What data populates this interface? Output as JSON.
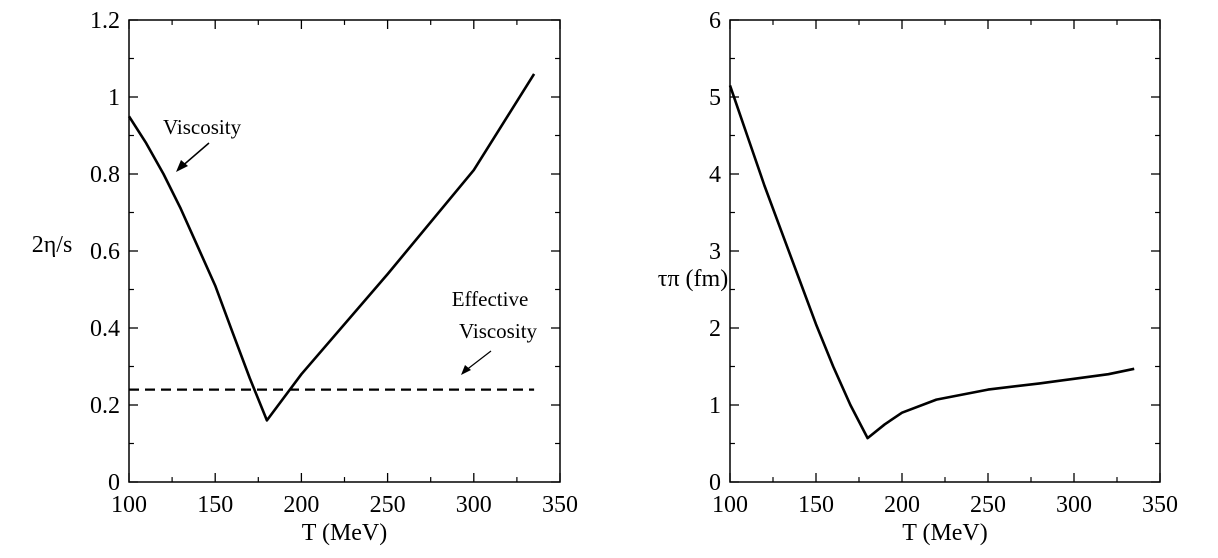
{
  "chart_data": [
    {
      "type": "line",
      "xlabel": "T (MeV)",
      "ylabel": "2η/s",
      "xlim": [
        100,
        350
      ],
      "ylim": [
        0,
        1.2
      ],
      "xticks": [
        100,
        150,
        200,
        250,
        300,
        350
      ],
      "yticks": [
        0,
        0.2,
        0.4,
        0.6,
        0.8,
        1,
        1.2
      ],
      "ytick_labels": [
        "0",
        "0.2",
        "0.4",
        "0.6",
        "0.8",
        "1",
        "1.2"
      ],
      "grid": false,
      "series": [
        {
          "name": "Viscosity",
          "style": "solid",
          "x": [
            100,
            110,
            120,
            130,
            140,
            150,
            160,
            170,
            180,
            200,
            250,
            300,
            335
          ],
          "y": [
            0.95,
            0.88,
            0.8,
            0.71,
            0.61,
            0.51,
            0.39,
            0.27,
            0.16,
            0.28,
            0.54,
            0.81,
            1.06
          ]
        },
        {
          "name": "Effective Viscosity",
          "style": "dashed",
          "x": [
            100,
            335
          ],
          "y": [
            0.24,
            0.24
          ]
        }
      ],
      "annotations": [
        {
          "text_lines": [
            "Viscosity"
          ],
          "anchor": "upper-left"
        },
        {
          "text_lines": [
            "Effective",
            "Viscosity"
          ],
          "anchor": "right"
        }
      ]
    },
    {
      "type": "line",
      "xlabel": "T (MeV)",
      "ylabel": "τπ (fm)",
      "xlim": [
        100,
        350
      ],
      "ylim": [
        0,
        6
      ],
      "xticks": [
        100,
        150,
        200,
        250,
        300,
        350
      ],
      "yticks": [
        0,
        1,
        2,
        3,
        4,
        5,
        6
      ],
      "ytick_labels": [
        "0",
        "1",
        "2",
        "3",
        "4",
        "5",
        "6"
      ],
      "grid": false,
      "series": [
        {
          "style": "solid",
          "x": [
            100,
            110,
            120,
            130,
            140,
            150,
            160,
            170,
            180,
            190,
            200,
            220,
            250,
            280,
            300,
            320,
            335
          ],
          "y": [
            5.15,
            4.5,
            3.85,
            3.25,
            2.65,
            2.05,
            1.5,
            1.0,
            0.57,
            0.75,
            0.9,
            1.07,
            1.2,
            1.28,
            1.34,
            1.4,
            1.47
          ]
        }
      ]
    }
  ]
}
